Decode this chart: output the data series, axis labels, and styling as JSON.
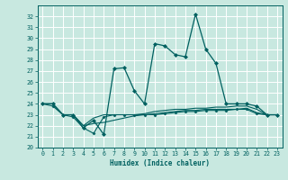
{
  "xlabel": "Humidex (Indice chaleur)",
  "bg_color": "#c8e8e0",
  "grid_color": "#ffffff",
  "line_color": "#006060",
  "xlim": [
    -0.5,
    23.5
  ],
  "ylim": [
    20,
    33
  ],
  "yticks": [
    20,
    21,
    22,
    23,
    24,
    25,
    26,
    27,
    28,
    29,
    30,
    31,
    32
  ],
  "xticks": [
    0,
    1,
    2,
    3,
    4,
    5,
    6,
    7,
    8,
    9,
    10,
    11,
    12,
    13,
    14,
    15,
    16,
    17,
    18,
    19,
    20,
    21,
    22,
    23
  ],
  "series": [
    {
      "y": [
        24.0,
        24.0,
        23.0,
        23.0,
        21.8,
        22.5,
        21.2,
        27.2,
        27.3,
        25.2,
        24.0,
        29.5,
        29.3,
        28.5,
        28.3,
        32.2,
        29.0,
        27.7,
        24.0,
        24.0,
        24.0,
        23.8,
        23.0,
        23.0
      ],
      "marker": "D",
      "markersize": 2.0,
      "linewidth": 0.9
    },
    {
      "y": [
        24.0,
        24.0,
        23.0,
        23.0,
        22.0,
        22.7,
        23.0,
        23.0,
        23.0,
        23.0,
        23.1,
        23.3,
        23.4,
        23.5,
        23.5,
        23.6,
        23.6,
        23.7,
        23.7,
        23.8,
        23.8,
        23.5,
        23.0,
        23.0
      ],
      "marker": null,
      "markersize": 0,
      "linewidth": 0.8
    },
    {
      "y": [
        24.0,
        24.0,
        23.0,
        23.0,
        22.0,
        22.2,
        22.3,
        22.5,
        22.7,
        22.9,
        23.0,
        23.1,
        23.2,
        23.3,
        23.4,
        23.4,
        23.5,
        23.5,
        23.5,
        23.5,
        23.6,
        23.2,
        23.0,
        23.0
      ],
      "marker": null,
      "markersize": 0,
      "linewidth": 0.8
    },
    {
      "y": [
        24.0,
        23.8,
        23.0,
        22.8,
        21.8,
        21.3,
        22.8,
        23.0,
        23.0,
        23.0,
        23.0,
        23.0,
        23.1,
        23.2,
        23.3,
        23.3,
        23.4,
        23.4,
        23.4,
        23.5,
        23.5,
        23.1,
        23.0,
        23.0
      ],
      "marker": "D",
      "markersize": 1.5,
      "linewidth": 0.8
    }
  ]
}
